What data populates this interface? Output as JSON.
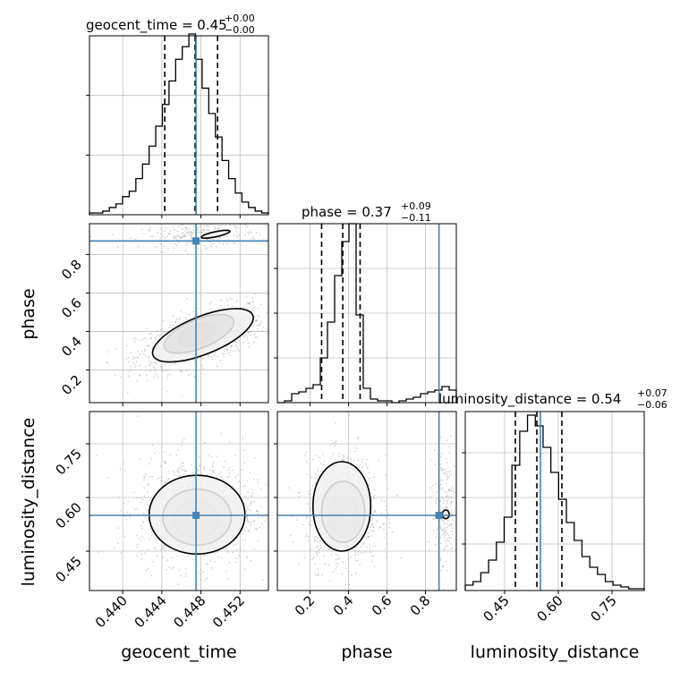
{
  "chart_data": {
    "type": "corner",
    "parameters": [
      "geocent_time",
      "phase",
      "luminosity_distance"
    ],
    "colors": {
      "truth": "#4682b4",
      "hist": "#000000",
      "grid": "#c0c0c0",
      "points": "#9a9a9a"
    },
    "truth": {
      "geocent_time": 0.4475,
      "phase": 0.87,
      "luminosity_distance": 0.55
    },
    "ranges": {
      "geocent_time": [
        0.4366,
        0.4549
      ],
      "phase": [
        0.03,
        0.96
      ],
      "luminosity_distance": [
        0.34,
        0.84
      ]
    },
    "ticks": {
      "geocent_time": [
        {
          "v": 0.44,
          "label": "0.440"
        },
        {
          "v": 0.444,
          "label": "0.444"
        },
        {
          "v": 0.448,
          "label": "0.448"
        },
        {
          "v": 0.452,
          "label": "0.452"
        }
      ],
      "phase": [
        {
          "v": 0.2,
          "label": "0.2"
        },
        {
          "v": 0.4,
          "label": "0.4"
        },
        {
          "v": 0.6,
          "label": "0.6"
        },
        {
          "v": 0.8,
          "label": "0.8"
        }
      ],
      "luminosity_distance": [
        {
          "v": 0.45,
          "label": "0.45"
        },
        {
          "v": 0.6,
          "label": "0.60"
        },
        {
          "v": 0.75,
          "label": "0.75"
        }
      ]
    },
    "titles": {
      "geocent_time": {
        "base": "geocent_time = 0.45",
        "sup": "+0.00",
        "sub": "−0.00"
      },
      "phase": {
        "base": "phase = 0.37",
        "sup": "+0.09",
        "sub": "−0.11"
      },
      "luminosity_distance": {
        "base": "luminosity_distance = 0.54",
        "sup": "+0.07",
        "sub": "−0.06"
      }
    },
    "quantiles": {
      "geocent_time": [
        0.4443,
        0.4474,
        0.4497
      ],
      "phase": [
        0.26,
        0.37,
        0.46
      ],
      "luminosity_distance": [
        0.48,
        0.54,
        0.61
      ]
    },
    "histograms": {
      "geocent_time": [
        0.01,
        0.01,
        0.02,
        0.04,
        0.06,
        0.1,
        0.13,
        0.2,
        0.28,
        0.38,
        0.49,
        0.61,
        0.74,
        0.86,
        0.93,
        1.0,
        0.86,
        0.7,
        0.56,
        0.43,
        0.3,
        0.2,
        0.12,
        0.07,
        0.04,
        0.02,
        0.01
      ],
      "phase": [
        0.0,
        0.01,
        0.05,
        0.06,
        0.08,
        0.1,
        0.25,
        0.45,
        0.71,
        0.9,
        1.0,
        0.49,
        0.08,
        0.02,
        0.01,
        0.01,
        0.0,
        0.01,
        0.02,
        0.03,
        0.05,
        0.06,
        0.07,
        0.09,
        0.07
      ],
      "luminosity_distance": [
        0.03,
        0.05,
        0.1,
        0.17,
        0.27,
        0.41,
        0.7,
        0.89,
        0.98,
        0.92,
        0.8,
        0.66,
        0.51,
        0.38,
        0.28,
        0.19,
        0.13,
        0.09,
        0.05,
        0.03,
        0.02,
        0.01,
        0.01
      ]
    },
    "hist_ymax": {
      "geocent_time": 0.99,
      "phase": 1.0,
      "luminosity_distance": 1.0
    },
    "hist_yticks": {
      "geocent_time": [
        0.33,
        0.66
      ],
      "phase": [
        0.25,
        0.5,
        0.75
      ],
      "luminosity_distance": [
        0.26,
        0.52,
        0.77
      ]
    },
    "axis_labels": {
      "x": [
        "geocent_time",
        "phase",
        "luminosity_distance"
      ],
      "y": [
        "phase",
        "luminosity_distance"
      ]
    },
    "contours": {
      "geocent_time|phase": [
        {
          "cx": 0.4476,
          "cy": 0.384,
          "rx": 0.002,
          "ry": 0.05,
          "rot": -22,
          "level": "inner"
        },
        {
          "cx": 0.4478,
          "cy": 0.388,
          "rx": 0.0038,
          "ry": 0.075,
          "rot": -22,
          "level": "mid"
        },
        {
          "cx": 0.4482,
          "cy": 0.38,
          "rx": 0.0055,
          "ry": 0.098,
          "rot": -22,
          "level": "outer"
        },
        {
          "cx": 0.4495,
          "cy": 0.905,
          "rx": 0.0015,
          "ry": 0.013,
          "rot": -12,
          "level": "outer"
        }
      ],
      "geocent_time|luminosity_distance": [
        {
          "cx": 0.4475,
          "cy": 0.535,
          "rx": 0.0009,
          "ry": 0.02,
          "rot": 0,
          "level": "inner"
        },
        {
          "cx": 0.4475,
          "cy": 0.538,
          "rx": 0.0023,
          "ry": 0.05,
          "rot": 0,
          "level": "mid"
        },
        {
          "cx": 0.4476,
          "cy": 0.545,
          "rx": 0.0035,
          "ry": 0.078,
          "rot": 0,
          "level": "mid2"
        },
        {
          "cx": 0.4476,
          "cy": 0.552,
          "rx": 0.0049,
          "ry": 0.11,
          "rot": 0,
          "level": "outer"
        }
      ],
      "phase|luminosity_distance": [
        {
          "cx": 0.375,
          "cy": 0.535,
          "rx": 0.032,
          "ry": 0.02,
          "rot": 0,
          "level": "inner"
        },
        {
          "cx": 0.375,
          "cy": 0.545,
          "rx": 0.08,
          "ry": 0.055,
          "rot": 0,
          "level": "mid"
        },
        {
          "cx": 0.372,
          "cy": 0.56,
          "rx": 0.112,
          "ry": 0.085,
          "rot": 0,
          "level": "mid2"
        },
        {
          "cx": 0.365,
          "cy": 0.575,
          "rx": 0.15,
          "ry": 0.125,
          "rot": 0,
          "level": "outer"
        },
        {
          "cx": 0.905,
          "cy": 0.553,
          "rx": 0.018,
          "ry": 0.012,
          "rot": 0,
          "level": "outer"
        }
      ]
    },
    "scatter_clouds": {
      "geocent_time|phase": [
        {
          "cx": 0.448,
          "cy": 0.37,
          "sx": 0.0033,
          "sy": 0.085,
          "rho": 0.6,
          "n": 950
        },
        {
          "cx": 0.448,
          "cy": 0.9,
          "sx": 0.003,
          "sy": 0.03,
          "rho": 0.1,
          "n": 220
        }
      ],
      "geocent_time|luminosity_distance": [
        {
          "cx": 0.4475,
          "cy": 0.56,
          "sx": 0.003,
          "sy": 0.075,
          "rho": 0.0,
          "n": 1100
        }
      ],
      "phase|luminosity_distance": [
        {
          "cx": 0.37,
          "cy": 0.56,
          "sx": 0.095,
          "sy": 0.075,
          "rho": 0.0,
          "n": 900
        },
        {
          "cx": 0.9,
          "cy": 0.56,
          "sx": 0.03,
          "sy": 0.09,
          "rho": 0.0,
          "n": 200
        }
      ]
    }
  }
}
